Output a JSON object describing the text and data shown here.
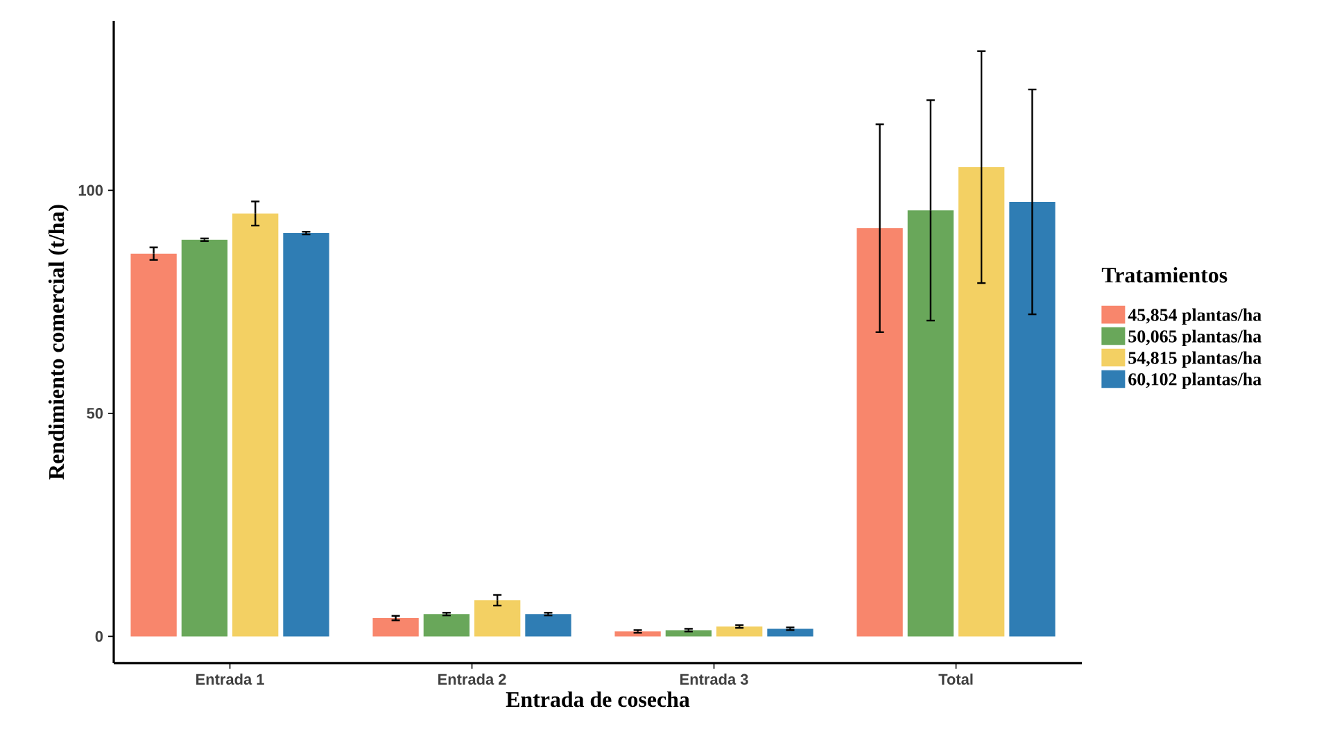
{
  "chart_data": {
    "type": "bar",
    "xlabel": "Entrada de cosecha",
    "ylabel": "Rendimiento comercial (t/ha)",
    "legend_title": "Tratamientos",
    "categories": [
      "Entrada 1",
      "Entrada 2",
      "Entrada 3",
      "Total"
    ],
    "series": [
      {
        "name": "45,854 plantas/ha",
        "color": "#f8866c",
        "values": [
          85.8,
          4.1,
          1.1,
          91.5
        ],
        "errors": [
          1.4,
          0.5,
          0.3,
          23.3
        ]
      },
      {
        "name": "50,065 plantas/ha",
        "color": "#69a75a",
        "values": [
          88.9,
          5.0,
          1.4,
          95.5
        ],
        "errors": [
          0.3,
          0.3,
          0.3,
          24.7
        ]
      },
      {
        "name": "54,815 plantas/ha",
        "color": "#f3d063",
        "values": [
          94.8,
          8.1,
          2.2,
          105.2
        ],
        "errors": [
          2.7,
          1.2,
          0.3,
          26.0
        ]
      },
      {
        "name": "60,102 plantas/ha",
        "color": "#2f7db4",
        "values": [
          90.4,
          5.0,
          1.7,
          97.4
        ],
        "errors": [
          0.3,
          0.3,
          0.3,
          25.2
        ]
      }
    ],
    "ylim": [
      -6,
      138
    ],
    "yticks": [
      0,
      50,
      100
    ],
    "grid": false,
    "legend": "right"
  }
}
